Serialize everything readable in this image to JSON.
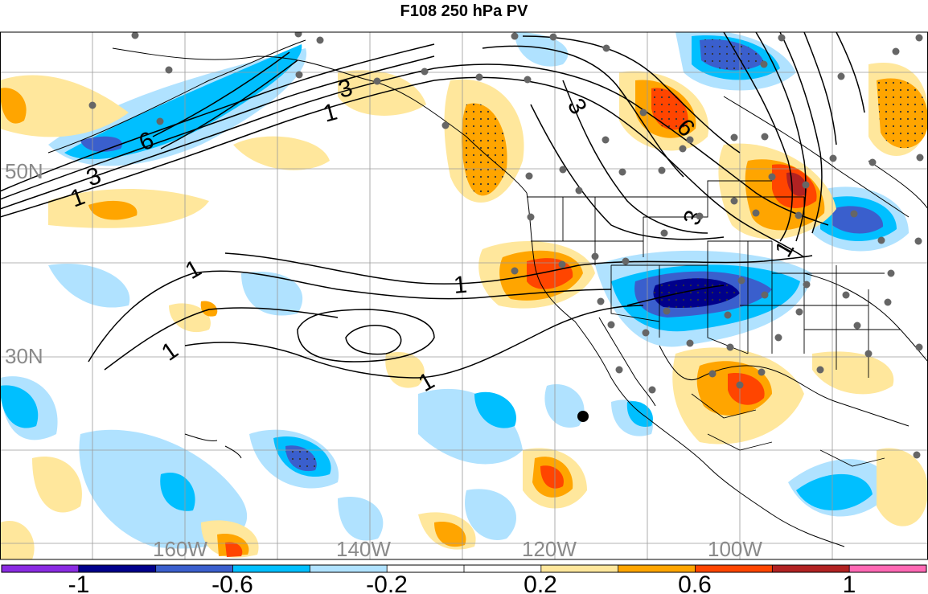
{
  "title": "F108 250 hPa PV",
  "latitude_labels": [
    "50N",
    "30N"
  ],
  "longitude_labels": [
    "160W",
    "140W",
    "120W",
    "100W"
  ],
  "contour_labels": [
    "1",
    "3",
    "6",
    "1",
    "3",
    "3",
    "6",
    "3",
    "1",
    "1",
    "1",
    "1",
    "1"
  ],
  "colorbar": {
    "ticks": [
      "-1",
      "-0.6",
      "-0.2",
      "0.2",
      "0.6",
      "1"
    ],
    "bins": [
      {
        "color": "#8a2be2"
      },
      {
        "color": "#00008b"
      },
      {
        "color": "#3a5fcd"
      },
      {
        "color": "#00bfff"
      },
      {
        "color": "#b0e2ff"
      },
      {
        "color": "#ffffff"
      },
      {
        "color": "#ffffff"
      },
      {
        "color": "#ffe79c"
      },
      {
        "color": "#ffa500"
      },
      {
        "color": "#ff4500"
      },
      {
        "color": "#b22222"
      },
      {
        "color": "#ff69b4"
      }
    ]
  },
  "marker_station": "black-dot"
}
